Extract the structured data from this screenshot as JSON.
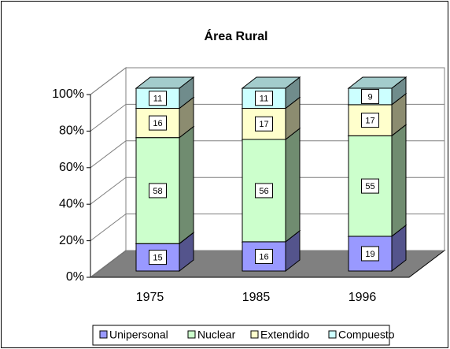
{
  "chart_data": {
    "type": "bar3d_stacked",
    "title": "Área Rural",
    "categories": [
      "1975",
      "1985",
      "1996"
    ],
    "series": [
      {
        "name": "Unipersonal",
        "color": "#9999ff",
        "values": [
          15,
          16,
          19
        ]
      },
      {
        "name": "Nuclear",
        "color": "#ccffcc",
        "values": [
          58,
          56,
          55
        ]
      },
      {
        "name": "Extendido",
        "color": "#ffffcc",
        "values": [
          16,
          17,
          17
        ]
      },
      {
        "name": "Compuesto",
        "color": "#ccffff",
        "values": [
          11,
          11,
          9
        ]
      }
    ],
    "ylim": [
      0,
      100
    ],
    "yticks": [
      {
        "value": 0,
        "label": "0%"
      },
      {
        "value": 20,
        "label": "20%"
      },
      {
        "value": 40,
        "label": "40%"
      },
      {
        "value": 60,
        "label": "60%"
      },
      {
        "value": 80,
        "label": "80%"
      },
      {
        "value": 100,
        "label": "100%"
      }
    ],
    "grid": true,
    "legend": "bottom"
  }
}
